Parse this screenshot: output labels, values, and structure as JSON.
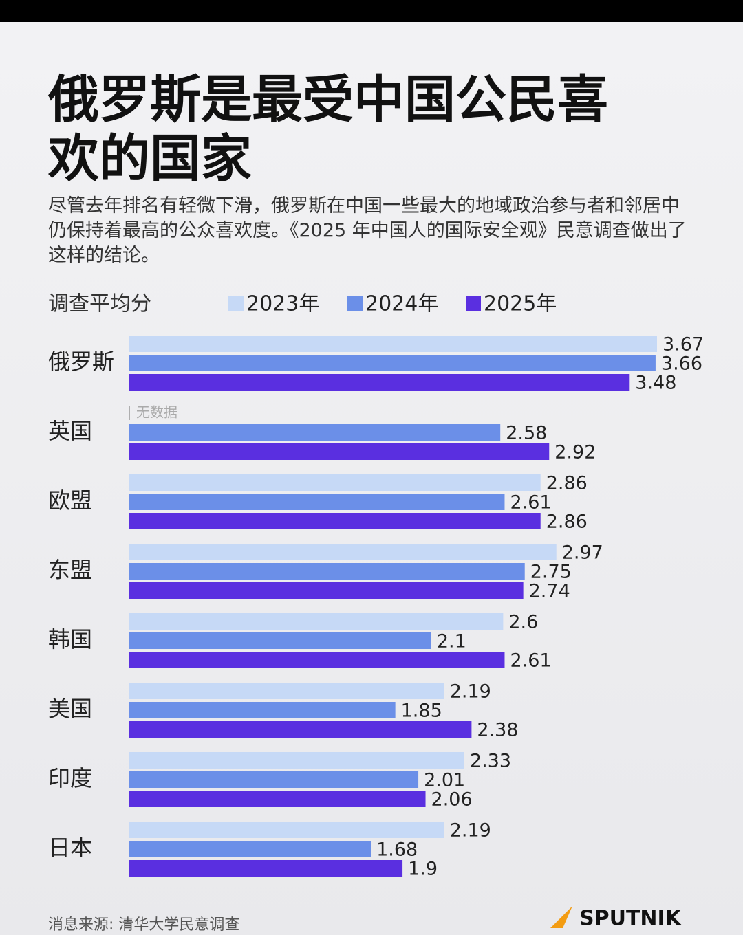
{
  "chart_data": {
    "type": "hbar",
    "title": "俄罗斯是最受中国公民喜欢的国家",
    "subtitle": "尽管去年排名有轻微下滑，俄罗斯在中国一些最大的地域政治参与者和邻居中仍保持着最高的公众喜欢度。《2025 年中国人的国际安全观》民意调查做出了这样的结论。",
    "axis_label": "调查平均分",
    "categories": [
      "俄罗斯",
      "英国",
      "欧盟",
      "东盟",
      "韩国",
      "美国",
      "印度",
      "日本"
    ],
    "series": [
      {
        "name": "2023年",
        "color": "#c6d9f6",
        "values": [
          3.67,
          null,
          2.86,
          2.97,
          2.6,
          2.19,
          2.33,
          2.19
        ]
      },
      {
        "name": "2024年",
        "color": "#6b8fe8",
        "values": [
          3.66,
          2.58,
          2.61,
          2.75,
          2.1,
          1.85,
          2.01,
          1.68
        ]
      },
      {
        "name": "2025年",
        "color": "#5a2fe0",
        "values": [
          3.48,
          2.92,
          2.86,
          2.74,
          2.61,
          2.38,
          2.06,
          1.9
        ]
      }
    ],
    "annotation": "无数据",
    "source": "消息来源: 清华大学民意调查",
    "logo": "SPUTNIK"
  }
}
